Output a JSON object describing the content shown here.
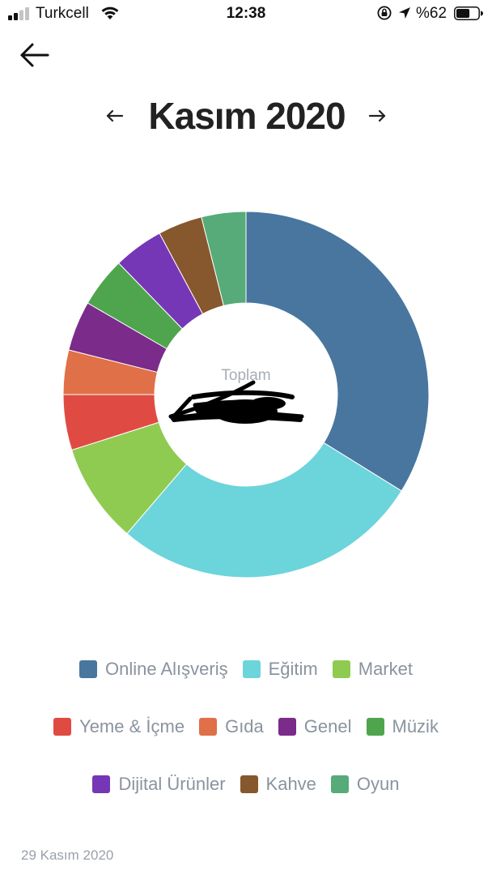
{
  "status_bar": {
    "carrier": "Turkcell",
    "time": "12:38",
    "battery_percent": "%62",
    "battery_level": 0.62,
    "icons": [
      "signal-icon",
      "wifi-icon",
      "rotation-lock-icon",
      "location-arrow-icon",
      "battery-icon"
    ]
  },
  "nav": {
    "back_icon": "arrow-left-icon"
  },
  "header": {
    "month_title": "Kasım 2020",
    "prev_icon": "arrow-left-small-icon",
    "next_icon": "arrow-right-small-icon"
  },
  "chart_data": {
    "type": "pie",
    "variant": "donut",
    "center_label": "Toplam",
    "center_value_redacted": true,
    "categories": [
      "Online Alışveriş",
      "Eğitim",
      "Market",
      "Yeme & İçme",
      "Gıda",
      "Genel",
      "Müzik",
      "Dijital Ürünler",
      "Kahve",
      "Oyun"
    ],
    "values": [
      34.5,
      28,
      9,
      5,
      4,
      4.5,
      4.5,
      4.5,
      4,
      4
    ],
    "colors": [
      "#48769f",
      "#6cd4db",
      "#8fcb51",
      "#df4b43",
      "#df7047",
      "#7b2b8a",
      "#4fa54e",
      "#7537b6",
      "#87572d",
      "#56ab78"
    ],
    "legend_position": "bottom"
  },
  "legend_rows": [
    [
      0,
      1,
      2
    ],
    [
      3,
      4,
      5,
      6
    ],
    [
      7,
      8,
      9
    ]
  ],
  "footer": {
    "date": "29 Kasım 2020"
  }
}
